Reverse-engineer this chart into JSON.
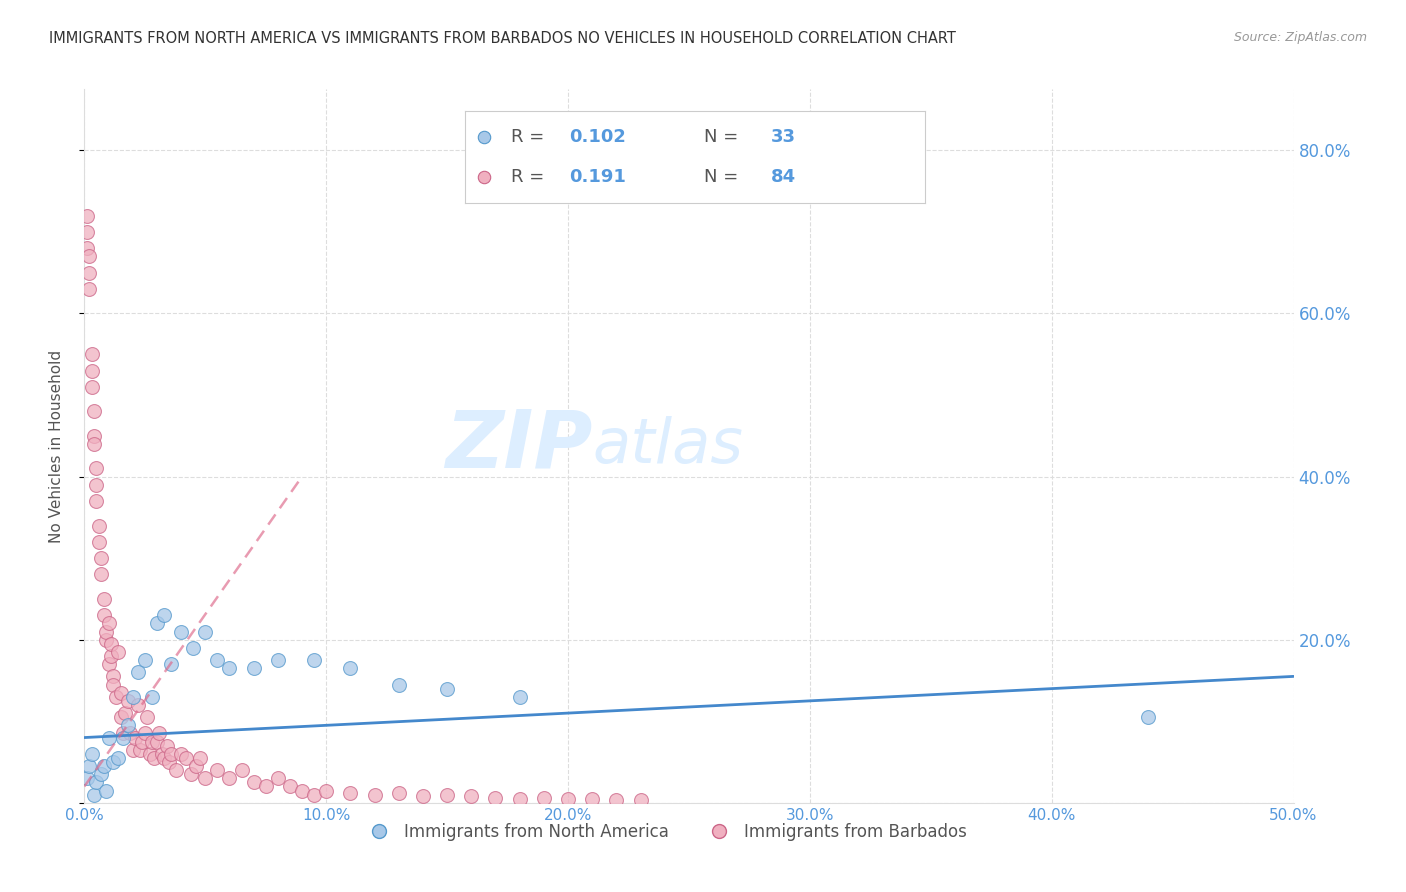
{
  "title": "IMMIGRANTS FROM NORTH AMERICA VS IMMIGRANTS FROM BARBADOS NO VEHICLES IN HOUSEHOLD CORRELATION CHART",
  "source": "Source: ZipAtlas.com",
  "ylabel": "No Vehicles in Household",
  "xlim": [
    0.0,
    0.5
  ],
  "ylim": [
    0.0,
    0.875
  ],
  "xticks": [
    0.0,
    0.1,
    0.2,
    0.3,
    0.4,
    0.5
  ],
  "xtick_labels": [
    "0.0%",
    "10.0%",
    "20.0%",
    "30.0%",
    "40.0%",
    "50.0%"
  ],
  "yticks_right": [
    0.2,
    0.4,
    0.6,
    0.8
  ],
  "ytick_labels_right": [
    "20.0%",
    "40.0%",
    "60.0%",
    "80.0%"
  ],
  "legend_r1": "0.102",
  "legend_n1": "33",
  "legend_r2": "0.191",
  "legend_n2": "84",
  "color_blue_fill": "#a8c8e8",
  "color_blue_edge": "#5599cc",
  "color_pink_fill": "#f0b0c0",
  "color_pink_edge": "#cc6688",
  "color_blue_line": "#4488cc",
  "color_pink_line": "#dd6688",
  "watermark_color": "#ddeeff",
  "background_color": "#ffffff",
  "grid_color": "#dddddd",
  "right_axis_color": "#5599dd",
  "title_color": "#333333",
  "source_color": "#999999",
  "ylabel_color": "#555555",
  "blue_scatter_x": [
    0.001,
    0.002,
    0.003,
    0.004,
    0.005,
    0.007,
    0.008,
    0.009,
    0.01,
    0.012,
    0.014,
    0.016,
    0.018,
    0.02,
    0.022,
    0.025,
    0.028,
    0.03,
    0.033,
    0.036,
    0.04,
    0.045,
    0.05,
    0.055,
    0.06,
    0.07,
    0.08,
    0.095,
    0.11,
    0.13,
    0.15,
    0.18,
    0.44
  ],
  "blue_scatter_y": [
    0.03,
    0.045,
    0.06,
    0.01,
    0.025,
    0.035,
    0.045,
    0.015,
    0.08,
    0.05,
    0.055,
    0.08,
    0.095,
    0.13,
    0.16,
    0.175,
    0.13,
    0.22,
    0.23,
    0.17,
    0.21,
    0.19,
    0.21,
    0.175,
    0.165,
    0.165,
    0.175,
    0.175,
    0.165,
    0.145,
    0.14,
    0.13,
    0.105
  ],
  "pink_scatter_x": [
    0.001,
    0.001,
    0.001,
    0.002,
    0.002,
    0.002,
    0.003,
    0.003,
    0.003,
    0.004,
    0.004,
    0.004,
    0.005,
    0.005,
    0.005,
    0.006,
    0.006,
    0.007,
    0.007,
    0.008,
    0.008,
    0.009,
    0.009,
    0.01,
    0.01,
    0.011,
    0.011,
    0.012,
    0.012,
    0.013,
    0.014,
    0.015,
    0.015,
    0.016,
    0.017,
    0.018,
    0.019,
    0.02,
    0.021,
    0.022,
    0.023,
    0.024,
    0.025,
    0.026,
    0.027,
    0.028,
    0.029,
    0.03,
    0.031,
    0.032,
    0.033,
    0.034,
    0.035,
    0.036,
    0.038,
    0.04,
    0.042,
    0.044,
    0.046,
    0.048,
    0.05,
    0.055,
    0.06,
    0.065,
    0.07,
    0.075,
    0.08,
    0.085,
    0.09,
    0.095,
    0.1,
    0.11,
    0.12,
    0.13,
    0.14,
    0.15,
    0.16,
    0.17,
    0.18,
    0.19,
    0.2,
    0.21,
    0.22,
    0.23
  ],
  "pink_scatter_y": [
    0.7,
    0.68,
    0.72,
    0.65,
    0.67,
    0.63,
    0.55,
    0.53,
    0.51,
    0.45,
    0.44,
    0.48,
    0.39,
    0.41,
    0.37,
    0.34,
    0.32,
    0.3,
    0.28,
    0.23,
    0.25,
    0.2,
    0.21,
    0.17,
    0.22,
    0.18,
    0.195,
    0.155,
    0.145,
    0.13,
    0.185,
    0.105,
    0.135,
    0.085,
    0.11,
    0.125,
    0.085,
    0.065,
    0.08,
    0.12,
    0.065,
    0.075,
    0.085,
    0.105,
    0.06,
    0.075,
    0.055,
    0.075,
    0.085,
    0.06,
    0.055,
    0.07,
    0.05,
    0.06,
    0.04,
    0.06,
    0.055,
    0.035,
    0.045,
    0.055,
    0.03,
    0.04,
    0.03,
    0.04,
    0.025,
    0.02,
    0.03,
    0.02,
    0.015,
    0.01,
    0.015,
    0.012,
    0.01,
    0.012,
    0.008,
    0.01,
    0.008,
    0.006,
    0.005,
    0.006,
    0.005,
    0.005,
    0.004,
    0.003
  ],
  "blue_trend_x": [
    0.0,
    0.5
  ],
  "blue_trend_y": [
    0.08,
    0.155
  ],
  "pink_trend_x": [
    0.0,
    0.09
  ],
  "pink_trend_y": [
    0.02,
    0.4
  ]
}
